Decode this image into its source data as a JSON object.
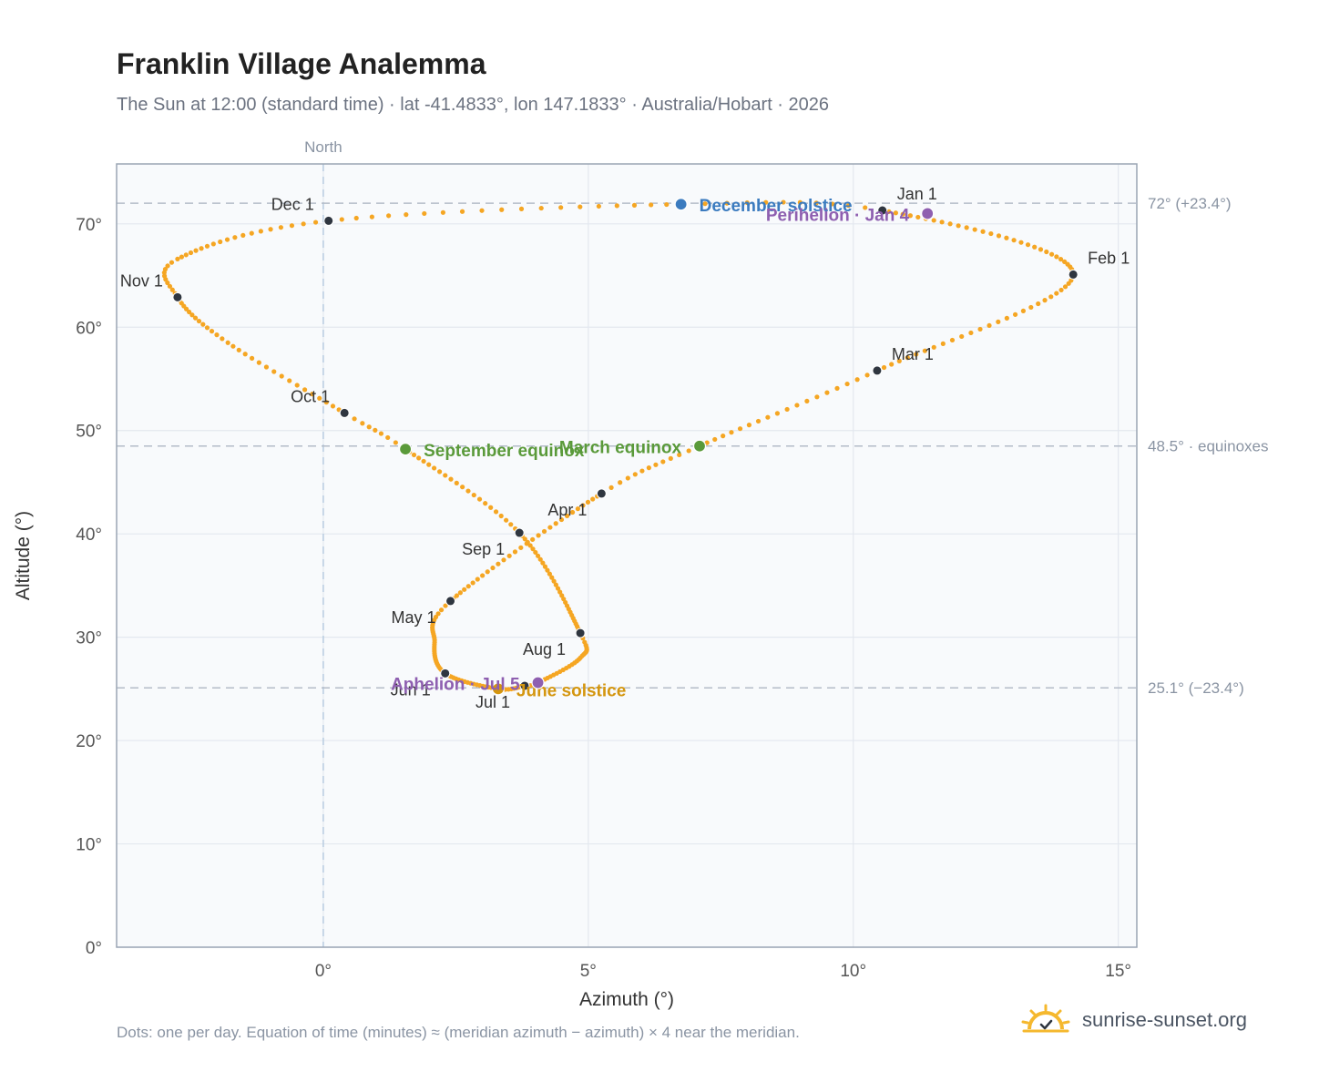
{
  "title": "Franklin Village Analemma",
  "subtitle": "The Sun at 12:00 (standard time) · lat -41.4833°, lon 147.1833° · Australia/Hobart · 2026",
  "footnote": "Dots: one per day. Equation of time (minutes) ≈ (meridian azimuth − azimuth) × 4 near the meridian.",
  "brand": "sunrise-sunset.org",
  "colors": {
    "curve": "#f5a623",
    "month_marker": "#2f3640",
    "equinox": "#5a9a3a",
    "december_solstice": "#3b7bbf",
    "june_solstice": "#d4960f",
    "apsides": "#8e5fb0",
    "plot_bg": "#f8fafc",
    "grid": "#e3e8ef",
    "frame": "#9aa5b4",
    "reference_line": "#b4bcc8",
    "north_line": "#b8cde0",
    "brand_icon": "#f5b82e"
  },
  "icons": [
    "sun-logo-icon"
  ],
  "chart_data": {
    "type": "scatter",
    "xlabel": "Azimuth (°)",
    "ylabel": "Altitude (°)",
    "xlim": [
      -3.9,
      15.35
    ],
    "ylim": [
      0,
      75.8
    ],
    "grid": true,
    "x_ticks": [
      {
        "value": 0,
        "label": "0°"
      },
      {
        "value": 5,
        "label": "5°"
      },
      {
        "value": 10,
        "label": "10°"
      },
      {
        "value": 15,
        "label": "15°"
      }
    ],
    "y_ticks": [
      {
        "value": 0,
        "label": "0°"
      },
      {
        "value": 10,
        "label": "10°"
      },
      {
        "value": 20,
        "label": "20°"
      },
      {
        "value": 30,
        "label": "30°"
      },
      {
        "value": 40,
        "label": "40°"
      },
      {
        "value": 50,
        "label": "50°"
      },
      {
        "value": 60,
        "label": "60°"
      },
      {
        "value": 70,
        "label": "70°"
      }
    ],
    "north_line": {
      "x": 0,
      "label": "North"
    },
    "reference_lines": [
      {
        "y": 72.0,
        "label": "72° (+23.4°)"
      },
      {
        "y": 48.5,
        "label": "48.5° · equinoxes"
      },
      {
        "y": 25.1,
        "label": "25.1° (−23.4°)"
      }
    ],
    "curve_anchors": [
      {
        "day": 0,
        "x": 10.55,
        "y": 71.3
      },
      {
        "day": 31,
        "x": 14.15,
        "y": 65.1
      },
      {
        "day": 59,
        "x": 10.45,
        "y": 55.8
      },
      {
        "day": 78,
        "x": 7.1,
        "y": 48.5
      },
      {
        "day": 90,
        "x": 5.25,
        "y": 43.9
      },
      {
        "day": 120,
        "x": 2.4,
        "y": 33.5
      },
      {
        "day": 135,
        "x": 2.1,
        "y": 29.5
      },
      {
        "day": 151,
        "x": 2.3,
        "y": 26.5
      },
      {
        "day": 171,
        "x": 3.3,
        "y": 25.0
      },
      {
        "day": 181,
        "x": 3.8,
        "y": 25.3
      },
      {
        "day": 185,
        "x": 4.05,
        "y": 25.6
      },
      {
        "day": 201,
        "x": 4.85,
        "y": 28.0
      },
      {
        "day": 212,
        "x": 4.85,
        "y": 30.4
      },
      {
        "day": 243,
        "x": 3.7,
        "y": 40.1
      },
      {
        "day": 265,
        "x": 1.55,
        "y": 48.2
      },
      {
        "day": 273,
        "x": 0.4,
        "y": 51.7
      },
      {
        "day": 290,
        "x": -1.8,
        "y": 58.5
      },
      {
        "day": 304,
        "x": -2.75,
        "y": 62.9
      },
      {
        "day": 315,
        "x": -2.75,
        "y": 66.6
      },
      {
        "day": 334,
        "x": 0.1,
        "y": 70.3
      },
      {
        "day": 354,
        "x": 6.75,
        "y": 71.9
      },
      {
        "day": 365,
        "x": 10.55,
        "y": 71.3
      }
    ],
    "month_markers": [
      {
        "label": "Jan 1",
        "x": 10.55,
        "y": 71.3,
        "anchor": "start",
        "dx": 16,
        "dy": -12
      },
      {
        "label": "Feb 1",
        "x": 14.15,
        "y": 65.1,
        "anchor": "start",
        "dx": 16,
        "dy": -12
      },
      {
        "label": "Mar 1",
        "x": 10.45,
        "y": 55.8,
        "anchor": "start",
        "dx": 16,
        "dy": -12
      },
      {
        "label": "Apr 1",
        "x": 5.25,
        "y": 43.9,
        "anchor": "end",
        "dx": -16,
        "dy": 24
      },
      {
        "label": "May 1",
        "x": 2.4,
        "y": 33.5,
        "anchor": "end",
        "dx": -16,
        "dy": 24
      },
      {
        "label": "Jun 1",
        "x": 2.3,
        "y": 26.5,
        "anchor": "end",
        "dx": -16,
        "dy": 24
      },
      {
        "label": "Jul 1",
        "x": 3.8,
        "y": 25.3,
        "anchor": "end",
        "dx": -16,
        "dy": 24
      },
      {
        "label": "Aug 1",
        "x": 4.85,
        "y": 30.4,
        "anchor": "end",
        "dx": -16,
        "dy": 24
      },
      {
        "label": "Sep 1",
        "x": 3.7,
        "y": 40.1,
        "anchor": "end",
        "dx": -16,
        "dy": 24
      },
      {
        "label": "Oct 1",
        "x": 0.4,
        "y": 51.7,
        "anchor": "end",
        "dx": -16,
        "dy": -12
      },
      {
        "label": "Nov 1",
        "x": -2.75,
        "y": 62.9,
        "anchor": "end",
        "dx": -16,
        "dy": -12
      },
      {
        "label": "Dec 1",
        "x": 0.1,
        "y": 70.3,
        "anchor": "end",
        "dx": -16,
        "dy": -12
      }
    ],
    "events": [
      {
        "label": "December solstice",
        "x": 6.75,
        "y": 71.9,
        "color": "#3b7bbf",
        "anchor": "start",
        "dx": 20,
        "dy": 8
      },
      {
        "label": "Perihelion · Jan 4",
        "x": 11.4,
        "y": 71.0,
        "color": "#8e5fb0",
        "anchor": "end",
        "dx": -20,
        "dy": 8
      },
      {
        "label": "March equinox",
        "x": 7.1,
        "y": 48.5,
        "color": "#5a9a3a",
        "anchor": "end",
        "dx": -20,
        "dy": 8
      },
      {
        "label": "September equinox",
        "x": 1.55,
        "y": 48.2,
        "color": "#5a9a3a",
        "anchor": "start",
        "dx": 20,
        "dy": 8
      },
      {
        "label": "June solstice",
        "x": 3.3,
        "y": 25.0,
        "color": "#d4960f",
        "anchor": "start",
        "dx": 20,
        "dy": 8
      },
      {
        "label": "Aphelion · Jul 5",
        "x": 4.05,
        "y": 25.6,
        "color": "#8e5fb0",
        "anchor": "end",
        "dx": -20,
        "dy": 8
      }
    ]
  }
}
